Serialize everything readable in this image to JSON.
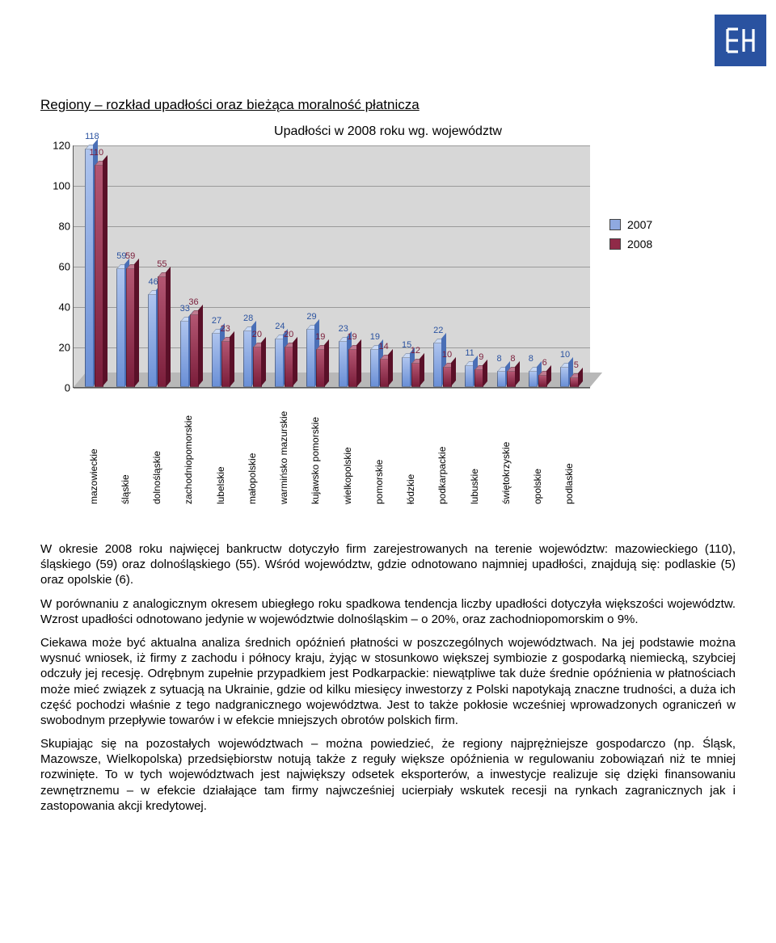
{
  "logo_text": "EH",
  "section_title": "Regiony – rozkład upadłości oraz bieżąca moralność płatnicza",
  "chart": {
    "type": "bar",
    "title": "Upadłości w 2008 roku wg. województw",
    "ylim": [
      0,
      120
    ],
    "ytick_step": 20,
    "yticks": [
      0,
      20,
      40,
      60,
      80,
      100,
      120
    ],
    "plot_bg": "#d7d7d7",
    "grid_color": "#9a9a9a",
    "series": [
      {
        "name": "2007",
        "color_fill": "#8fa9e0",
        "label_color": "#2a52a0"
      },
      {
        "name": "2008",
        "color_fill": "#902a48",
        "label_color": "#7a1d3a"
      }
    ],
    "categories": [
      "mazowieckie",
      "śląskie",
      "dolnośląskie",
      "zachodniopomorskie",
      "lubelskie",
      "małopolskie",
      "warmińsko mazurskie",
      "kujawsko pomorskie",
      "wielkopolskie",
      "pomorskie",
      "łódzkie",
      "podkarpackie",
      "lubuskie",
      "świętokrzyskie",
      "opolskie",
      "podlaskie"
    ],
    "values_2007": [
      118,
      59,
      46,
      33,
      27,
      28,
      24,
      29,
      23,
      19,
      15,
      22,
      11,
      8,
      8,
      10
    ],
    "values_2008": [
      110,
      59,
      55,
      36,
      23,
      20,
      20,
      19,
      19,
      14,
      12,
      10,
      9,
      8,
      6,
      5
    ]
  },
  "paragraphs": {
    "p1": "W okresie 2008 roku najwięcej bankructw dotyczyło firm zarejestrowanych na terenie województw: mazowieckiego (110), śląskiego (59) oraz dolnośląskiego (55). Wśród województw, gdzie odnotowano najmniej upadłości, znajdują się: podlaskie (5) oraz opolskie (6).",
    "p2": "W porównaniu z analogicznym okresem ubiegłego roku spadkowa tendencja liczby upadłości dotyczyła większości województw. Wzrost upadłości odnotowano jedynie w województwie dolnośląskim – o 20%, oraz zachodniopomorskim o 9%.",
    "p3": "Ciekawa może być aktualna analiza średnich opóźnień płatności w poszczególnych województwach. Na jej podstawie można wysnuć wniosek, iż firmy z zachodu i północy kraju, żyjąc w stosunkowo większej symbiozie z gospodarką niemiecką, szybciej odczuły jej recesję. Odrębnym zupełnie przypadkiem jest Podkarpackie: niewątpliwe tak duże średnie opóźnienia w płatnościach może mieć związek z sytuacją na Ukrainie, gdzie od kilku miesięcy inwestorzy z Polski napotykają znaczne trudności, a duża ich część pochodzi właśnie z tego nadgranicznego województwa. Jest to także pokłosie wcześniej wprowadzonych ograniczeń w swobodnym przepływie towarów i w efekcie mniejszych obrotów polskich firm.",
    "p4": "Skupiając się na pozostałych województwach – można powiedzieć, że regiony najprężniejsze gospodarczo (np. Śląsk, Mazowsze, Wielkopolska) przedsiębiorstw notują także z reguły większe opóźnienia w regulowaniu zobowiązań niż te mniej rozwinięte. To w tych województwach jest największy odsetek eksporterów, a inwestycje realizuje się dzięki finansowaniu zewnętrznemu – w efekcie działające tam firmy najwcześniej ucierpiały wskutek recesji na rynkach zagranicznych jak i zastopowania akcji kredytowej."
  }
}
